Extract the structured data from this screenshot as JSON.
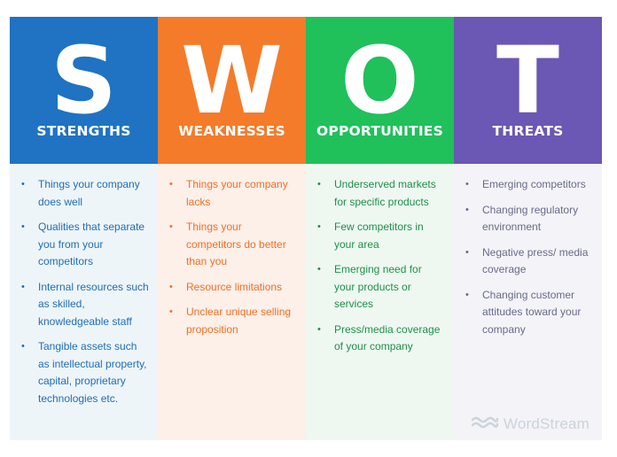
{
  "columns": [
    {
      "key": "strengths",
      "letter": "S",
      "title": "STRENGTHS",
      "header_color": "#1f73c2",
      "body_color": "#eef5f9",
      "text_color": "#1e6eb4",
      "items": [
        "Things your company does well",
        "Qualities that separate you from your competitors",
        "Internal resources such as skilled, knowledgeable staff",
        "Tangible assets such as intellectual property, capital, proprietary technologies etc."
      ]
    },
    {
      "key": "weaknesses",
      "letter": "W",
      "title": "WEAKNESSES",
      "header_color": "#f47b2a",
      "body_color": "#fdf0e9",
      "text_color": "#f06f23",
      "items": [
        "Things your company lacks",
        "Things your competitors do better than you",
        "Resource limitations",
        "Unclear unique selling proposition"
      ]
    },
    {
      "key": "opportunities",
      "letter": "O",
      "title": "OPPORTUNITIES",
      "header_color": "#20c05b",
      "body_color": "#eef8f1",
      "text_color": "#1f8f4a",
      "items": [
        "Underserved markets for specific products",
        "Few competitors in your area",
        "Emerging need for your products or services",
        "Press/media coverage of your company"
      ]
    },
    {
      "key": "threats",
      "letter": "T",
      "title": "THREATS",
      "header_color": "#6b57b4",
      "body_color": "#f3f3f8",
      "text_color": "#6a6a8a",
      "items": [
        "Emerging competitors",
        "Changing regulatory environment",
        "Negative press/ media coverage",
        "Changing customer attitudes toward your company"
      ]
    }
  ],
  "watermark": {
    "text": "WordStream",
    "icon": "wordstream-waves-logo"
  }
}
